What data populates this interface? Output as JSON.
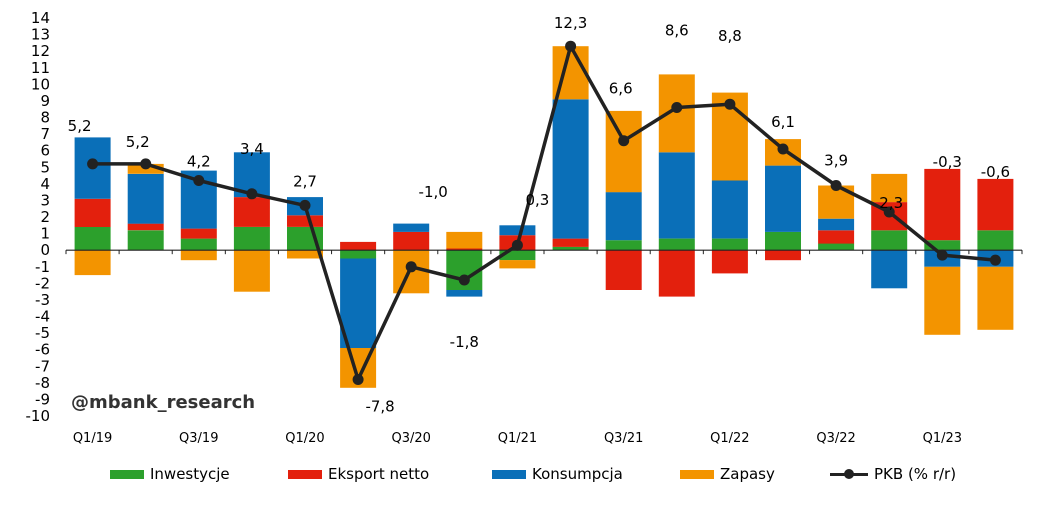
{
  "chart_data": {
    "type": "bar",
    "stacked": true,
    "ylim": [
      -10,
      14
    ],
    "yticks": [
      14,
      13,
      12,
      11,
      10,
      9,
      8,
      7,
      6,
      5,
      4,
      3,
      2,
      1,
      0,
      -1,
      -2,
      -3,
      -4,
      -5,
      -6,
      -7,
      -8,
      -9,
      -10
    ],
    "categories": [
      "Q1/19",
      "Q2/19",
      "Q3/19",
      "Q4/19",
      "Q1/20",
      "Q2/20",
      "Q3/20",
      "Q4/20",
      "Q1/21",
      "Q2/21",
      "Q3/21",
      "Q4/21",
      "Q1/22",
      "Q2/22",
      "Q3/22",
      "Q4/22",
      "Q1/23",
      "Q2/23"
    ],
    "xtick_labels": [
      "Q1/19",
      "Q3/19",
      "Q1/20",
      "Q3/20",
      "Q1/21",
      "Q3/21",
      "Q1/22",
      "Q3/22",
      "Q1/23"
    ],
    "series": [
      {
        "name": "Inwestycje",
        "color": "#2ca02c",
        "values": [
          1.4,
          1.2,
          0.7,
          1.4,
          1.4,
          -0.5,
          0.0,
          -2.4,
          -0.6,
          0.2,
          0.6,
          0.7,
          0.7,
          1.1,
          0.4,
          1.2,
          0.6,
          1.2
        ]
      },
      {
        "name": "Eksport netto",
        "color": "#e3200d",
        "values": [
          1.7,
          0.4,
          0.6,
          1.8,
          0.7,
          0.5,
          1.1,
          0.1,
          0.9,
          0.5,
          -2.4,
          -2.8,
          -1.4,
          -0.6,
          0.8,
          1.7,
          4.3,
          3.1
        ]
      },
      {
        "name": "Konsumpcja",
        "color": "#0a6fb8",
        "values": [
          3.7,
          3.0,
          3.5,
          2.7,
          1.1,
          -5.4,
          0.5,
          -0.4,
          0.6,
          8.4,
          2.9,
          5.2,
          3.5,
          4.0,
          0.7,
          -2.3,
          -1.0,
          -1.0
        ]
      },
      {
        "name": "Zapasy",
        "color": "#f39400",
        "values": [
          -1.5,
          0.6,
          -0.6,
          -2.5,
          -0.5,
          -2.4,
          -2.6,
          1.0,
          -0.5,
          3.2,
          4.9,
          4.7,
          5.3,
          1.6,
          2.0,
          1.7,
          -4.1,
          -3.8
        ]
      }
    ],
    "line": {
      "name": "PKB (% r/r)",
      "color": "#222222",
      "values": [
        5.2,
        5.2,
        4.2,
        3.4,
        2.7,
        -7.8,
        -1.0,
        -1.8,
        0.3,
        12.3,
        6.6,
        8.6,
        8.8,
        6.1,
        3.9,
        2.3,
        -0.3,
        -0.6
      ],
      "labels": [
        "5,2",
        "5,2",
        "4,2",
        "3,4",
        "2,7",
        "-7,8",
        "-1,0",
        "-1,8",
        "0,3",
        "12,3",
        "6,6",
        "8,6",
        "8,8",
        "6,1",
        "3,9",
        "2,3",
        "-0,3",
        "-0,6"
      ]
    },
    "legend_position": "bottom",
    "grid": false
  },
  "watermark": "@mbank_research",
  "legend": {
    "inwestycje": "Inwestycje",
    "eksport": "Eksport netto",
    "konsumpcja": "Konsumpcja",
    "zapasy": "Zapasy",
    "pkb": "PKB (% r/r)"
  }
}
